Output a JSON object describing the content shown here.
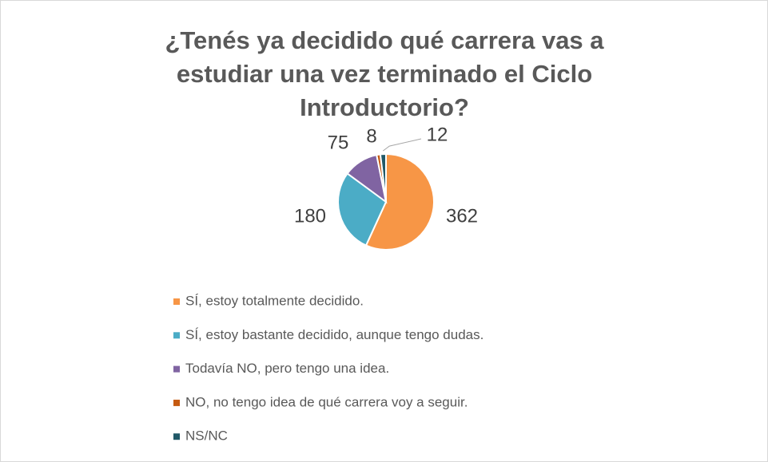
{
  "chart_data": {
    "type": "pie",
    "title": "¿Tenés ya decidido qué carrera vas a estudiar una vez terminado el Ciclo Introductorio?",
    "categories": [
      "SÍ, estoy totalmente decidido.",
      "SÍ, estoy bastante decidido, aunque tengo dudas.",
      "Todavía NO, pero tengo una idea.",
      "NO, no tengo idea de qué carrera voy a seguir.",
      "NS/NC"
    ],
    "values": [
      362,
      180,
      75,
      8,
      12
    ],
    "colors": [
      "#f79646",
      "#4bacc6",
      "#8064a2",
      "#c55a11",
      "#215968"
    ],
    "legend": "bottom"
  }
}
